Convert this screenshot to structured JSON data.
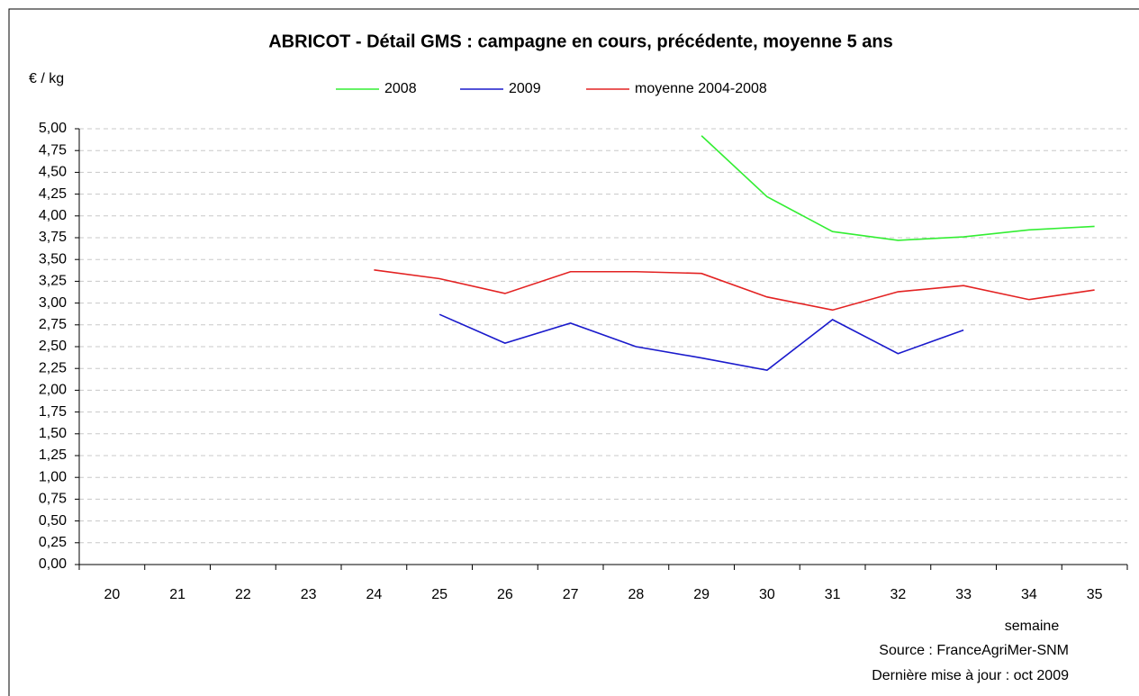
{
  "chart_data": {
    "type": "line",
    "title": "ABRICOT - Détail GMS : campagne en cours, précédente, moyenne 5 ans",
    "y_label": "€ / kg",
    "x_label": "semaine",
    "notes": [
      "Source : FranceAgriMer-SNM",
      "Dernière mise à jour : oct 2009"
    ],
    "categories": [
      "20",
      "21",
      "22",
      "23",
      "24",
      "25",
      "26",
      "27",
      "28",
      "29",
      "30",
      "31",
      "32",
      "33",
      "34",
      "35"
    ],
    "series": [
      {
        "name": "2008",
        "color": "#33ee33",
        "values": [
          null,
          null,
          null,
          null,
          null,
          null,
          null,
          null,
          null,
          4.92,
          4.22,
          3.82,
          3.72,
          3.76,
          3.84,
          3.88
        ]
      },
      {
        "name": "2009",
        "color": "#1a1acc",
        "values": [
          null,
          null,
          null,
          null,
          null,
          2.87,
          2.54,
          2.77,
          2.5,
          2.37,
          2.23,
          2.81,
          2.42,
          2.69,
          null,
          null
        ]
      },
      {
        "name": "moyenne 2004-2008",
        "color": "#e32222",
        "values": [
          null,
          null,
          null,
          null,
          3.38,
          3.28,
          3.11,
          3.36,
          3.36,
          3.34,
          3.07,
          2.92,
          3.13,
          3.2,
          3.04,
          3.15
        ]
      }
    ],
    "ylim": [
      0,
      5
    ],
    "yticks": [
      {
        "value": 0,
        "label": "0,00"
      },
      {
        "value": 0.25,
        "label": "0,25"
      },
      {
        "value": 0.5,
        "label": "0,50"
      },
      {
        "value": 0.75,
        "label": "0,75"
      },
      {
        "value": 1,
        "label": "1,00"
      },
      {
        "value": 1.25,
        "label": "1,25"
      },
      {
        "value": 1.5,
        "label": "1,50"
      },
      {
        "value": 1.75,
        "label": "1,75"
      },
      {
        "value": 2,
        "label": "2,00"
      },
      {
        "value": 2.25,
        "label": "2,25"
      },
      {
        "value": 2.5,
        "label": "2,50"
      },
      {
        "value": 2.75,
        "label": "2,75"
      },
      {
        "value": 3,
        "label": "3,00"
      },
      {
        "value": 3.25,
        "label": "3,25"
      },
      {
        "value": 3.5,
        "label": "3,50"
      },
      {
        "value": 3.75,
        "label": "3,75"
      },
      {
        "value": 4,
        "label": "4,00"
      },
      {
        "value": 4.25,
        "label": "4,25"
      },
      {
        "value": 4.5,
        "label": "4,50"
      },
      {
        "value": 4.75,
        "label": "4,75"
      },
      {
        "value": 5,
        "label": "5,00"
      }
    ],
    "grid": true,
    "legend": "top"
  }
}
